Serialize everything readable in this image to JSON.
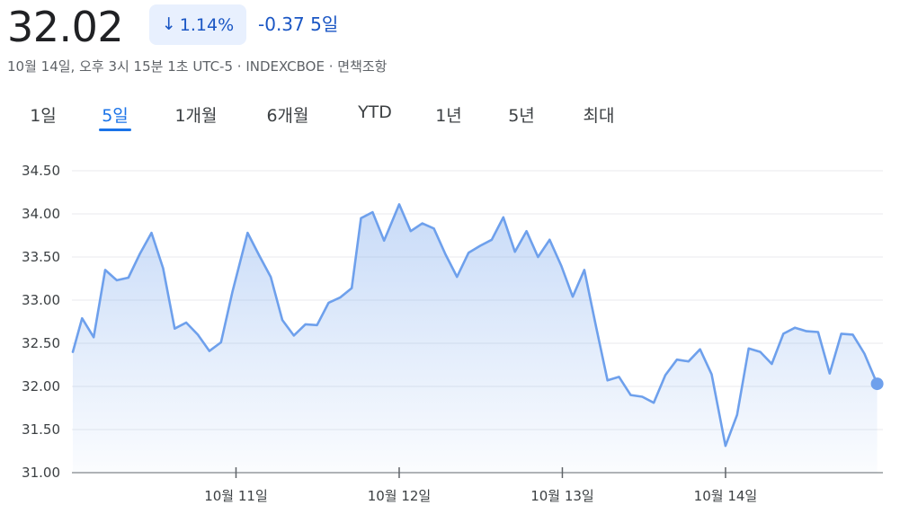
{
  "header": {
    "price": "32.02",
    "change_pct": "1.14%",
    "change_abs": "-0.37",
    "period_label": "5일",
    "meta": "10월 14일, 오후 3시 15분 1초 UTC-5 · INDEXCBOE · 면책조항",
    "accent_color": "#1a73e8",
    "negative_color": "#1a56c4"
  },
  "tabs": [
    {
      "label": "1일",
      "active": false
    },
    {
      "label": "5일",
      "active": true
    },
    {
      "label": "1개월",
      "active": false
    },
    {
      "label": "6개월",
      "active": false
    },
    {
      "label": "YTD",
      "active": false
    },
    {
      "label": "1년",
      "active": false
    },
    {
      "label": "5년",
      "active": false
    },
    {
      "label": "최대",
      "active": false
    }
  ],
  "chart_data": {
    "type": "area",
    "ylim": [
      31.0,
      34.5
    ],
    "y_ticks": [
      "34.50",
      "34.00",
      "33.50",
      "33.00",
      "32.50",
      "32.00",
      "31.50",
      "31.00"
    ],
    "y_tick_values": [
      34.5,
      34.0,
      33.5,
      33.0,
      32.5,
      32.0,
      31.5,
      31.0
    ],
    "x_ticks": [
      "10월 11일",
      "10월 12일",
      "10월 13일",
      "10월 14일"
    ],
    "x_tick_positions": [
      14.1,
      28.2,
      42.3,
      56.4
    ],
    "x_range": [
      0,
      70
    ],
    "line_color": "#6ea0ec",
    "grid": true,
    "series": [
      {
        "values": [
          [
            0,
            32.4
          ],
          [
            0.8,
            32.79
          ],
          [
            1.8,
            32.57
          ],
          [
            2.8,
            33.35
          ],
          [
            3.8,
            33.23
          ],
          [
            4.8,
            33.26
          ],
          [
            5.8,
            33.54
          ],
          [
            6.8,
            33.78
          ],
          [
            7.8,
            33.37
          ],
          [
            8.8,
            32.67
          ],
          [
            9.8,
            32.74
          ],
          [
            10.8,
            32.6
          ],
          [
            11.8,
            32.41
          ],
          [
            12.8,
            32.51
          ],
          [
            13.8,
            33.1
          ],
          [
            15.1,
            33.78
          ],
          [
            16.1,
            33.52
          ],
          [
            17.1,
            33.27
          ],
          [
            18.1,
            32.77
          ],
          [
            19.1,
            32.59
          ],
          [
            20.1,
            32.72
          ],
          [
            21.1,
            32.71
          ],
          [
            22.1,
            32.97
          ],
          [
            23.1,
            33.03
          ],
          [
            24.1,
            33.14
          ],
          [
            24.9,
            33.95
          ],
          [
            25.9,
            34.02
          ],
          [
            26.9,
            33.69
          ],
          [
            28.2,
            34.11
          ],
          [
            29.2,
            33.8
          ],
          [
            30.2,
            33.89
          ],
          [
            31.2,
            33.83
          ],
          [
            32.2,
            33.53
          ],
          [
            33.2,
            33.27
          ],
          [
            34.2,
            33.55
          ],
          [
            35.2,
            33.63
          ],
          [
            36.2,
            33.7
          ],
          [
            37.2,
            33.96
          ],
          [
            38.2,
            33.56
          ],
          [
            39.2,
            33.8
          ],
          [
            40.2,
            33.5
          ],
          [
            41.2,
            33.7
          ],
          [
            42.2,
            33.4
          ],
          [
            43.2,
            33.04
          ],
          [
            44.2,
            33.35
          ],
          [
            45.2,
            32.7
          ],
          [
            46.2,
            32.07
          ],
          [
            47.2,
            32.11
          ],
          [
            48.2,
            31.9
          ],
          [
            49.2,
            31.88
          ],
          [
            50.2,
            31.81
          ],
          [
            51.2,
            32.13
          ],
          [
            52.2,
            32.31
          ],
          [
            53.2,
            32.29
          ],
          [
            54.2,
            32.43
          ],
          [
            55.2,
            32.14
          ],
          [
            56.4,
            31.31
          ],
          [
            57.4,
            31.67
          ],
          [
            58.4,
            32.44
          ],
          [
            59.4,
            32.4
          ],
          [
            60.4,
            32.26
          ],
          [
            61.4,
            32.61
          ],
          [
            62.4,
            32.68
          ],
          [
            63.4,
            32.64
          ],
          [
            64.4,
            32.63
          ],
          [
            65.4,
            32.15
          ],
          [
            66.4,
            32.61
          ],
          [
            67.4,
            32.6
          ],
          [
            68.4,
            32.38
          ],
          [
            69.5,
            32.03
          ]
        ]
      }
    ]
  }
}
